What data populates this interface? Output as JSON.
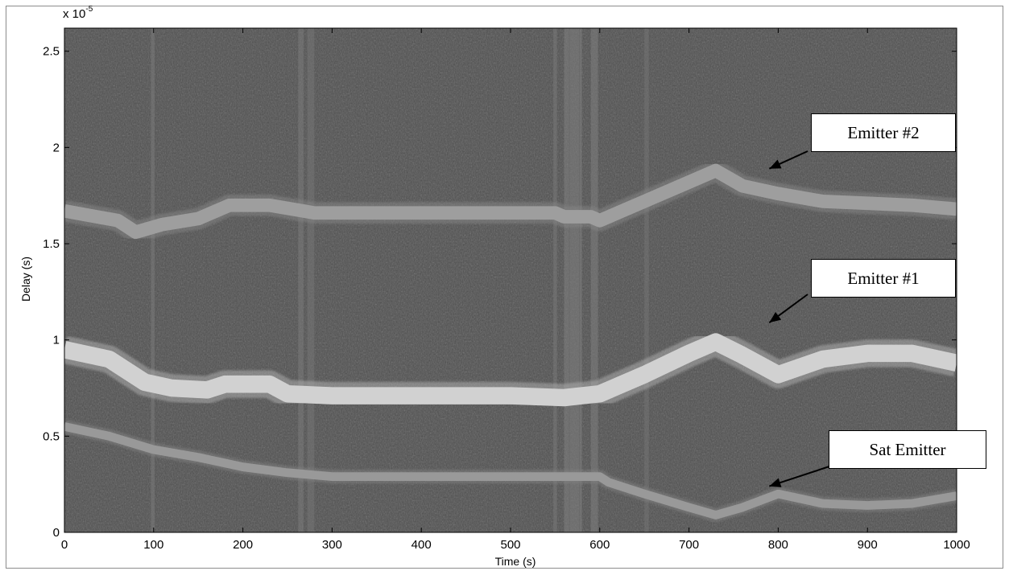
{
  "chart_data": {
    "type": "heatmap",
    "title": "",
    "xlabel": "Time (s)",
    "ylabel": "Delay (s)",
    "y_multiplier_label": "x 10",
    "y_multiplier_exponent": "-5",
    "xlim": [
      0,
      1000
    ],
    "ylim": [
      0,
      2.62
    ],
    "x_ticks": [
      0,
      100,
      200,
      300,
      400,
      500,
      600,
      700,
      800,
      900,
      1000
    ],
    "x_tick_labels": [
      "0",
      "100",
      "200",
      "300",
      "400",
      "500",
      "600",
      "700",
      "800",
      "900",
      "1000"
    ],
    "y_ticks": [
      0,
      0.5,
      1,
      1.5,
      2,
      2.5
    ],
    "y_tick_labels": [
      "0",
      "0.5",
      "1",
      "1.5",
      "2",
      "2.5"
    ],
    "colormap": "gray",
    "background_color": "#4d4d4d",
    "series": [
      {
        "name": "Emitter #2",
        "x": [
          0,
          60,
          80,
          110,
          150,
          185,
          230,
          280,
          350,
          450,
          550,
          560,
          590,
          600,
          650,
          700,
          730,
          760,
          800,
          850,
          900,
          950,
          1000
        ],
        "y": [
          1.67,
          1.62,
          1.56,
          1.6,
          1.63,
          1.7,
          1.7,
          1.66,
          1.66,
          1.66,
          1.66,
          1.64,
          1.64,
          1.62,
          1.72,
          1.82,
          1.88,
          1.8,
          1.76,
          1.72,
          1.71,
          1.7,
          1.68
        ],
        "brightness": 0.62,
        "thickness": 0.07
      },
      {
        "name": "Emitter #1",
        "x": [
          0,
          50,
          90,
          120,
          160,
          180,
          230,
          250,
          300,
          400,
          500,
          560,
          580,
          600,
          650,
          700,
          730,
          760,
          800,
          850,
          900,
          950,
          1000
        ],
        "y": [
          0.95,
          0.9,
          0.78,
          0.75,
          0.74,
          0.77,
          0.77,
          0.72,
          0.71,
          0.71,
          0.71,
          0.7,
          0.71,
          0.72,
          0.82,
          0.93,
          0.99,
          0.92,
          0.82,
          0.9,
          0.93,
          0.93,
          0.88
        ],
        "brightness": 0.82,
        "thickness": 0.09
      },
      {
        "name": "Sat Emitter",
        "x": [
          0,
          50,
          100,
          150,
          200,
          250,
          300,
          400,
          500,
          600,
          610,
          650,
          700,
          730,
          760,
          800,
          850,
          900,
          950,
          1000
        ],
        "y": [
          0.55,
          0.5,
          0.43,
          0.39,
          0.34,
          0.31,
          0.29,
          0.29,
          0.29,
          0.29,
          0.26,
          0.2,
          0.13,
          0.09,
          0.13,
          0.2,
          0.15,
          0.14,
          0.15,
          0.19
        ],
        "brightness": 0.6,
        "thickness": 0.045
      }
    ],
    "vertical_stripes": [
      {
        "x": 97,
        "w": 4,
        "brightness": 0.48
      },
      {
        "x": 262,
        "w": 6,
        "brightness": 0.48
      },
      {
        "x": 272,
        "w": 8,
        "brightness": 0.46
      },
      {
        "x": 548,
        "w": 4,
        "brightness": 0.47
      },
      {
        "x": 560,
        "w": 20,
        "brightness": 0.5
      },
      {
        "x": 590,
        "w": 8,
        "brightness": 0.49
      },
      {
        "x": 650,
        "w": 5,
        "brightness": 0.45
      }
    ],
    "annotations": [
      {
        "text": "Emitter #2",
        "arrow_tip_x": 790,
        "arrow_tip_y": 1.89
      },
      {
        "text": "Emitter #1",
        "arrow_tip_x": 790,
        "arrow_tip_y": 1.09
      },
      {
        "text": "Sat Emitter",
        "arrow_tip_x": 790,
        "arrow_tip_y": 0.24
      }
    ]
  }
}
